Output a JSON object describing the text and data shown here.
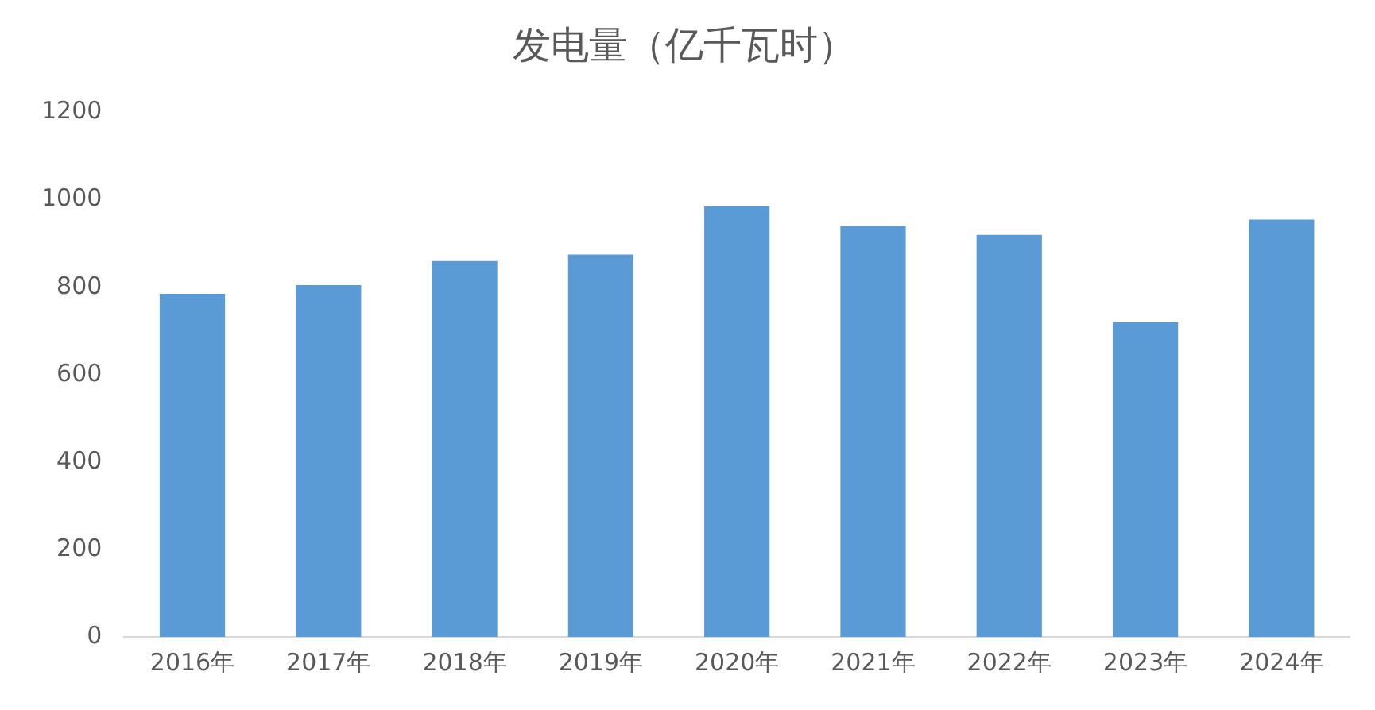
{
  "chart_data": {
    "type": "bar",
    "title": "发电量（亿千瓦时）",
    "categories": [
      "2016年",
      "2017年",
      "2018年",
      "2019年",
      "2020年",
      "2021年",
      "2022年",
      "2023年",
      "2024年"
    ],
    "values": [
      785,
      805,
      860,
      875,
      985,
      940,
      920,
      720,
      955
    ],
    "color": "#5b9bd5",
    "ylim": [
      0,
      1200
    ],
    "yticks": [
      0,
      200,
      400,
      600,
      800,
      1000,
      1200
    ],
    "grid": false
  }
}
